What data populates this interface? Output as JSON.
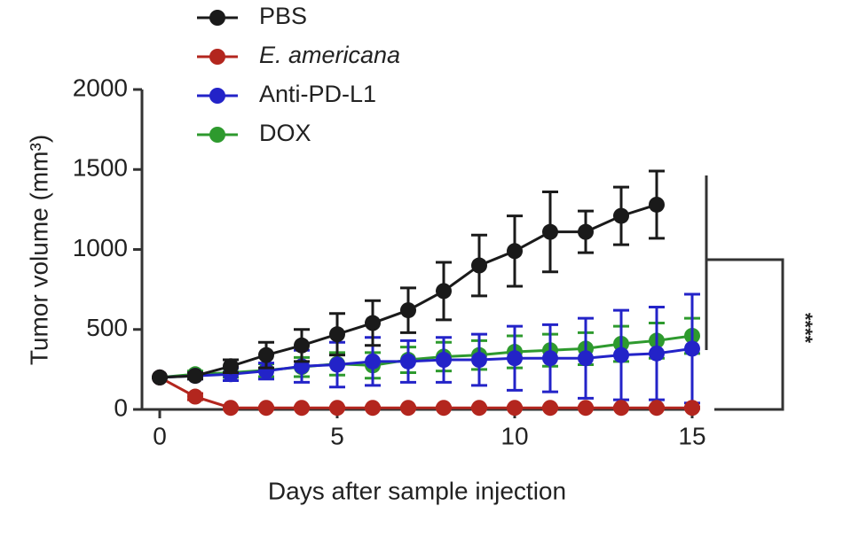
{
  "chart_data": {
    "type": "line",
    "x_label": "Days after sample injection",
    "y_label": "Tumor volume (mm³)",
    "x": [
      0,
      1,
      2,
      3,
      4,
      5,
      6,
      7,
      8,
      9,
      10,
      11,
      12,
      13,
      14,
      15
    ],
    "xlim": [
      -0.5,
      15
    ],
    "xticks": [
      0,
      5,
      10,
      15
    ],
    "ylim": [
      0,
      2000
    ],
    "yticks": [
      0,
      500,
      1000,
      1500,
      2000
    ],
    "series": [
      {
        "name": "PBS",
        "color": "#1a1a1a",
        "values": [
          200,
          210,
          270,
          340,
          400,
          470,
          540,
          620,
          740,
          900,
          990,
          1110,
          1110,
          1210,
          1280,
          null
        ],
        "errors": [
          0,
          20,
          40,
          80,
          100,
          130,
          140,
          140,
          180,
          190,
          220,
          250,
          130,
          180,
          210,
          null
        ]
      },
      {
        "name": "E. americana",
        "color": "#b3261e",
        "italic": true,
        "values": [
          200,
          80,
          10,
          10,
          10,
          10,
          10,
          10,
          10,
          10,
          10,
          10,
          10,
          10,
          10,
          10
        ],
        "errors": [
          0,
          20,
          5,
          5,
          5,
          5,
          5,
          5,
          5,
          5,
          5,
          5,
          5,
          5,
          5,
          5
        ]
      },
      {
        "name": "Anti-PD-L1",
        "color": "#2323c8",
        "values": [
          200,
          210,
          220,
          240,
          270,
          280,
          300,
          300,
          310,
          310,
          320,
          320,
          320,
          340,
          350,
          380
        ],
        "errors": [
          0,
          20,
          40,
          50,
          100,
          140,
          150,
          130,
          140,
          160,
          200,
          210,
          250,
          280,
          290,
          340
        ]
      },
      {
        "name": "DOX",
        "color": "#2e9a2e",
        "values": [
          200,
          220,
          230,
          245,
          265,
          285,
          275,
          310,
          330,
          340,
          360,
          370,
          380,
          410,
          430,
          460
        ],
        "errors": [
          0,
          20,
          30,
          40,
          60,
          70,
          80,
          80,
          90,
          90,
          100,
          100,
          100,
          110,
          110,
          110
        ]
      }
    ],
    "annotation": "****"
  }
}
